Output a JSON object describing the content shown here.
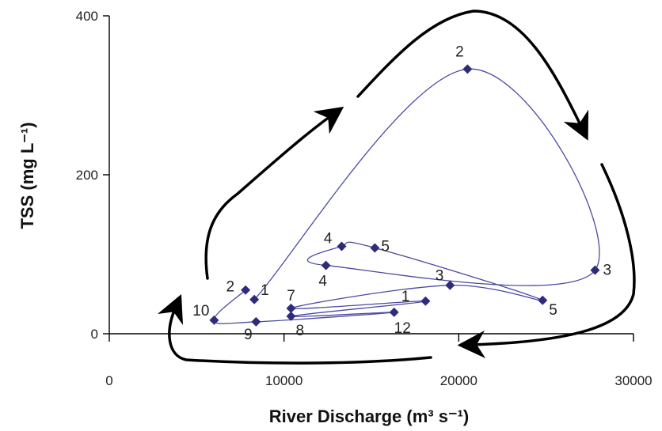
{
  "chart_data": {
    "type": "scatter",
    "title": "",
    "xlabel": "River Discharge (m³ s⁻¹)",
    "ylabel": "TSS (mg L⁻¹)",
    "xlim": [
      0,
      30000
    ],
    "ylim": [
      0,
      400
    ],
    "xticks": [
      "0",
      "10000",
      "20000",
      "30000"
    ],
    "yticks": [
      "0",
      "200",
      "400"
    ],
    "grid": false,
    "legend": "none",
    "line_color": "#4b4aa0",
    "marker_color": "#2e2b7a",
    "arrow_color": "#000000",
    "arrows": "clockwise hysteresis loop",
    "series": [
      {
        "points": [
          {
            "x": 8300,
            "y": 43,
            "label": "1"
          },
          {
            "x": 20500,
            "y": 333,
            "label": "2"
          },
          {
            "x": 27800,
            "y": 80,
            "label": "3"
          },
          {
            "x": 12400,
            "y": 86,
            "label": "4"
          },
          {
            "x": 13300,
            "y": 110,
            "label": "4"
          },
          {
            "x": 15200,
            "y": 108,
            "label": "5"
          },
          {
            "x": 24800,
            "y": 42,
            "label": "5"
          },
          {
            "x": 19500,
            "y": 61,
            "label": "3"
          },
          {
            "x": 10400,
            "y": 32,
            "label": "7"
          },
          {
            "x": 18100,
            "y": 41,
            "label": "1"
          },
          {
            "x": 10400,
            "y": 22,
            "label": "8"
          },
          {
            "x": 16300,
            "y": 27,
            "label": "12"
          },
          {
            "x": 8400,
            "y": 15,
            "label": "9"
          },
          {
            "x": 6000,
            "y": 17,
            "label": "10"
          },
          {
            "x": 7800,
            "y": 55,
            "label": "2"
          }
        ]
      }
    ]
  }
}
